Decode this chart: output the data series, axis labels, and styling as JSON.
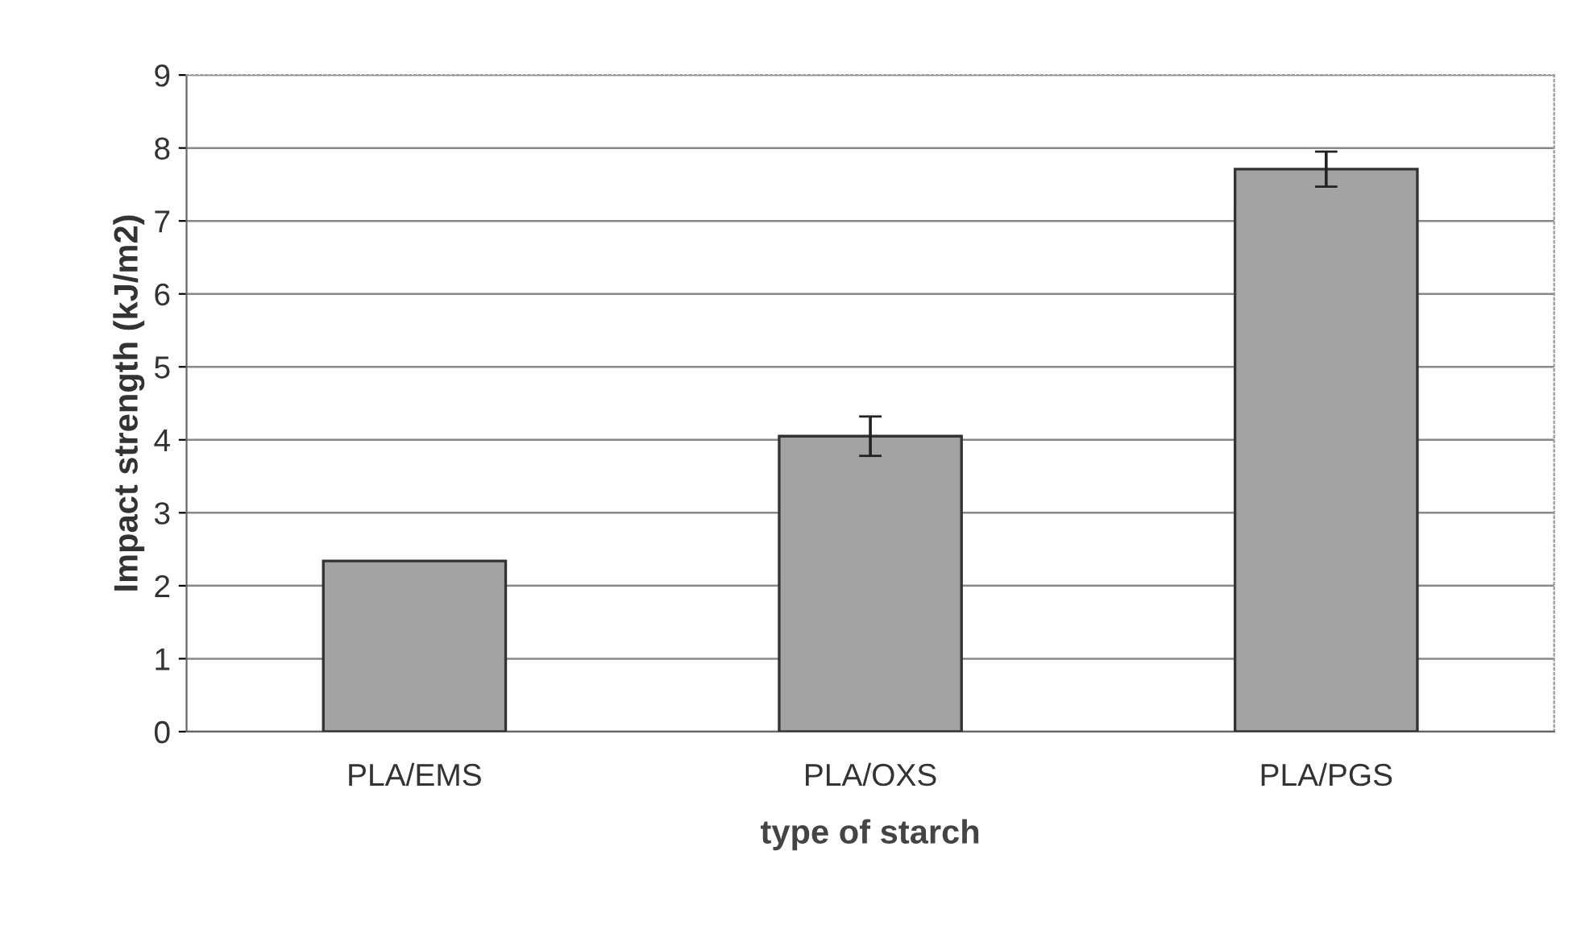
{
  "chart_data": {
    "type": "bar",
    "xlabel": "type of starch",
    "ylabel": "Impact strength (kJ/m2)",
    "categories": [
      "PLA/EMS",
      "PLA/OXS",
      "PLA/PGS"
    ],
    "values": [
      2.34,
      4.05,
      7.71
    ],
    "errors": [
      null,
      0.27,
      0.24
    ],
    "color": "#a3a3a3",
    "ylim": [
      0,
      9
    ],
    "yticks": [
      0,
      1,
      2,
      3,
      4,
      5,
      6,
      7,
      8,
      9
    ],
    "grid": "y",
    "legend": false
  }
}
